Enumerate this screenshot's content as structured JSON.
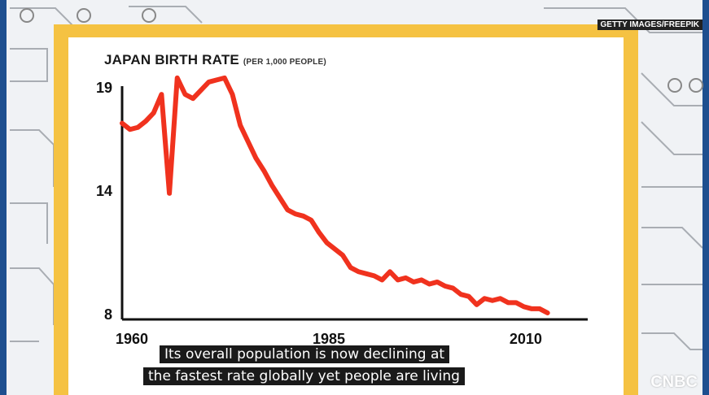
{
  "credit": "GETTY IMAGES/FREEPIK",
  "captions": [
    "Its overall population is now declining at",
    "the fastest rate globally yet people are living"
  ],
  "logo": "CNBC",
  "colors": {
    "frame": "#f5c242",
    "line": "#f0321e",
    "caption_bg": "#1a1a1a",
    "side_bars": "#1e4f8f"
  },
  "chart_data": {
    "type": "line",
    "title": "JAPAN BIRTH RATE",
    "subtitle": "(PER 1,000 PEOPLE)",
    "xlabel": "",
    "ylabel": "",
    "xlim": [
      1960,
      2016
    ],
    "ylim": [
      8,
      19
    ],
    "x_ticks": [
      1960,
      1985,
      2010
    ],
    "y_ticks": [
      19,
      14,
      8
    ],
    "grid": false,
    "series": [
      {
        "x": [
          1960,
          1961,
          1962,
          1963,
          1964,
          1965,
          1966,
          1967,
          1968,
          1969,
          1970,
          1971,
          1972,
          1973,
          1974,
          1975,
          1976,
          1977,
          1978,
          1979,
          1980,
          1981,
          1982,
          1983,
          1984,
          1985,
          1986,
          1987,
          1988,
          1989,
          1990,
          1991,
          1992,
          1993,
          1994,
          1995,
          1996,
          1997,
          1998,
          1999,
          2000,
          2001,
          2002,
          2003,
          2004,
          2005,
          2006,
          2007,
          2008,
          2009,
          2010,
          2011,
          2012,
          2013,
          2014
        ],
        "y": [
          17.2,
          16.9,
          17.0,
          17.3,
          17.7,
          18.6,
          13.8,
          19.4,
          18.6,
          18.4,
          18.8,
          19.2,
          19.3,
          19.4,
          18.6,
          17.1,
          16.3,
          15.5,
          14.9,
          14.2,
          13.6,
          13.0,
          12.8,
          12.7,
          12.5,
          11.9,
          11.4,
          11.1,
          10.8,
          10.2,
          10.0,
          9.9,
          9.8,
          9.6,
          10.0,
          9.6,
          9.7,
          9.5,
          9.6,
          9.4,
          9.5,
          9.3,
          9.2,
          8.9,
          8.8,
          8.4,
          8.7,
          8.6,
          8.7,
          8.5,
          8.5,
          8.3,
          8.2,
          8.2,
          8.0
        ]
      }
    ]
  }
}
